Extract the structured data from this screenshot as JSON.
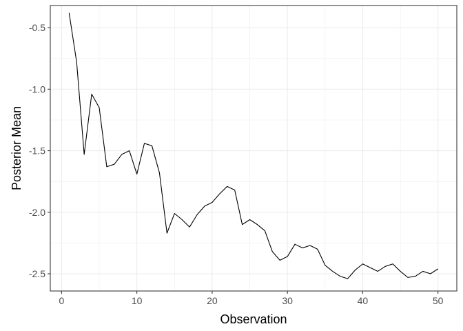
{
  "chart_data": {
    "type": "line",
    "title": "",
    "xlabel": "Observation",
    "ylabel": "Posterior Mean",
    "xlim": [
      -1.5,
      52.5
    ],
    "ylim": [
      -2.64,
      -0.32
    ],
    "x_ticks": [
      0,
      10,
      20,
      30,
      40,
      50
    ],
    "x_tick_labels": [
      "0",
      "10",
      "20",
      "30",
      "40",
      "50"
    ],
    "y_ticks": [
      -2.5,
      -2.0,
      -1.5,
      -1.0,
      -0.5
    ],
    "y_tick_labels": [
      "-2.5",
      "-2.0",
      "-1.5",
      "-1.0",
      "-0.5"
    ],
    "grid": true,
    "line_color": "#000000",
    "grid_color": "#ebebeb",
    "panel_border_color": "#333333",
    "series": [
      {
        "x": [
          1,
          2,
          3,
          4,
          5,
          6,
          7,
          8,
          9,
          10,
          11,
          12,
          13,
          14,
          15,
          16,
          17,
          18,
          19,
          20,
          21,
          22,
          23,
          24,
          25,
          26,
          27,
          28,
          29,
          30,
          31,
          32,
          33,
          34,
          35,
          36,
          37,
          38,
          39,
          40,
          41,
          42,
          43,
          44,
          45,
          46,
          47,
          48,
          49,
          50
        ],
        "values": [
          -0.38,
          -0.78,
          -1.53,
          -1.04,
          -1.15,
          -1.63,
          -1.61,
          -1.53,
          -1.5,
          -1.69,
          -1.44,
          -1.46,
          -1.68,
          -2.17,
          -2.01,
          -2.06,
          -2.12,
          -2.02,
          -1.95,
          -1.92,
          -1.85,
          -1.79,
          -1.82,
          -2.1,
          -2.06,
          -2.1,
          -2.15,
          -2.32,
          -2.39,
          -2.36,
          -2.26,
          -2.29,
          -2.27,
          -2.3,
          -2.43,
          -2.48,
          -2.52,
          -2.54,
          -2.47,
          -2.42,
          -2.45,
          -2.48,
          -2.44,
          -2.42,
          -2.48,
          -2.53,
          -2.52,
          -2.48,
          -2.5,
          -2.46
        ]
      }
    ]
  }
}
